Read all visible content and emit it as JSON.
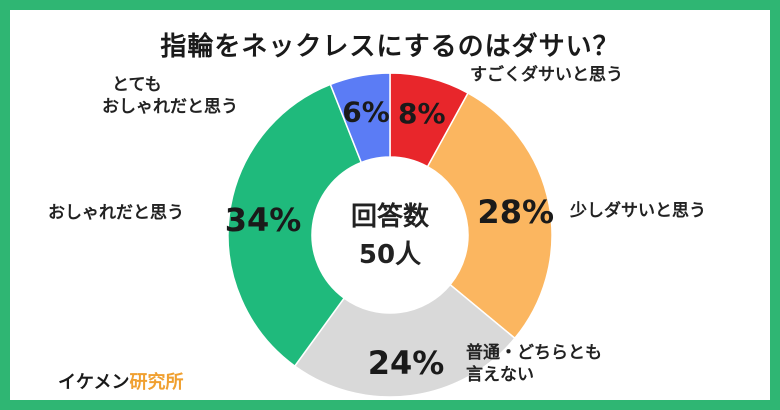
{
  "title": "指輪をネックレスにするのはダサい？",
  "center": {
    "line1": "回答数",
    "line2": "50人"
  },
  "footer": {
    "brand_part1": "イケメン",
    "brand_part2": "研究所"
  },
  "colors": {
    "border": "#2fb673",
    "brand_text": "#1a1a1a",
    "brand_accent": "#f0a030"
  },
  "chart_data": {
    "type": "pie",
    "title": "指輪をネックレスにするのはダサい？",
    "unit": "%",
    "categories": [
      "すごくダサいと思う",
      "少しダサいと思う",
      "普通・どちらとも言えない",
      "おしゃれだと思う",
      "とてもおしゃれだと思う"
    ],
    "values": [
      8,
      28,
      24,
      34,
      6
    ],
    "value_labels": [
      "8%",
      "28%",
      "24%",
      "34%",
      "6%"
    ],
    "colors": [
      "#e8262b",
      "#fbb660",
      "#d9d9d9",
      "#1fba7c",
      "#5b7cf5"
    ],
    "category_label_lines": [
      [
        "すごくダサいと思う"
      ],
      [
        "少しダサいと思う"
      ],
      [
        "普通・どちらとも",
        "言えない"
      ],
      [
        "おしゃれだと思う"
      ],
      [
        "とても",
        "おしゃれだと思う"
      ]
    ]
  }
}
